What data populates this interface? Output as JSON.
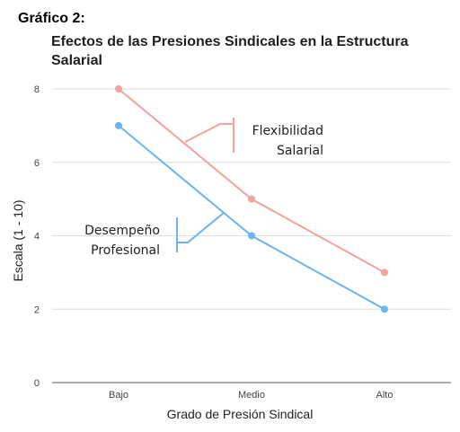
{
  "figure_label": "Gráfico 2:",
  "chart_data": {
    "type": "line",
    "title_lines": [
      "Efectos de las Presiones Sindicales en la Estructura",
      "Salarial"
    ],
    "xlabel": "Grado de Presión Sindical",
    "ylabel": "Escala (1 - 10)",
    "categories": [
      "Bajo",
      "Medio",
      "Alto"
    ],
    "ylim": [
      0,
      8
    ],
    "yticks": [
      0,
      2,
      4,
      6,
      8
    ],
    "grid": true,
    "series": [
      {
        "label_lines": [
          "Flexibilidad",
          "Salarial"
        ],
        "color": "#f4a19f",
        "values": [
          8,
          5,
          3
        ]
      },
      {
        "label_lines": [
          "Desempeño",
          "Profesional"
        ],
        "color": "#6cb4ee",
        "values": [
          7,
          4,
          2
        ]
      }
    ]
  },
  "colors": {
    "gridline": "#dddddd",
    "baseline": "#777777",
    "tick_text": "#444444"
  }
}
